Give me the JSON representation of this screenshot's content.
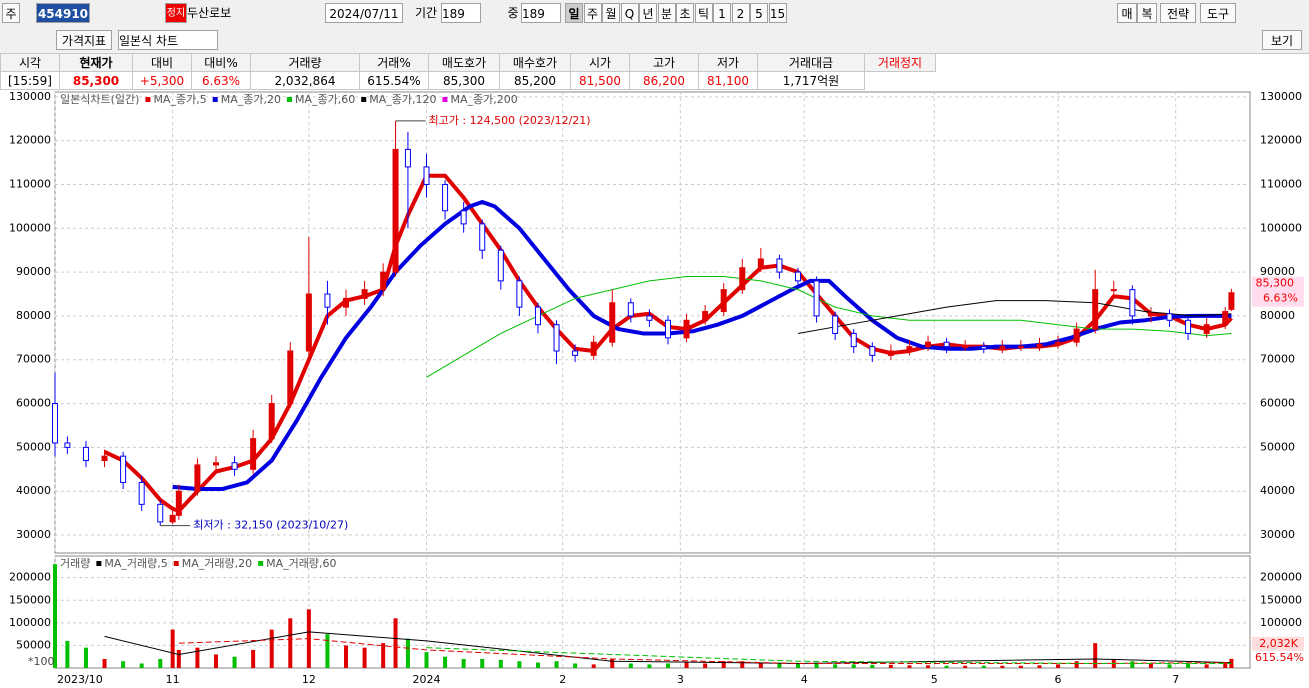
{
  "toolbar": {
    "code_label": "주",
    "code": "454910",
    "badge": "정지",
    "name": "두산로보",
    "date": "2024/07/11",
    "period_label": "기간",
    "period": "189",
    "mid_label": "중",
    "mid": "189",
    "intervals": [
      "일",
      "주",
      "월",
      "Q",
      "년",
      "분",
      "초",
      "틱",
      "1",
      "2",
      "5",
      "15"
    ],
    "right_buttons": [
      "매",
      "복",
      "전략",
      "도구"
    ],
    "indicator": "가격지표",
    "chart_kind": "일본식 차트",
    "view": "보기"
  },
  "quote": {
    "headers": [
      "시각",
      "현재가",
      "대비",
      "대비%",
      "거래량",
      "거래%",
      "매도호가",
      "매수호가",
      "시가",
      "고가",
      "저가",
      "거래대금",
      "거래정지"
    ],
    "values": [
      "[15:59]",
      "85,300",
      "+5,300",
      "6.63%",
      "2,032,864",
      "615.54%",
      "85,300",
      "85,200",
      "81,500",
      "86,200",
      "81,100",
      "1,717억원"
    ]
  },
  "chart_data": [
    {
      "type": "candlestick",
      "legend_title": "일본식차트(일간)",
      "up_color": "#e00000",
      "down_color": "#0000ff",
      "x": [
        0,
        2,
        5,
        8,
        11,
        14,
        17,
        19,
        20,
        23,
        26,
        29,
        32,
        35,
        38,
        41,
        44,
        47,
        50,
        53,
        55,
        57,
        60,
        63,
        66,
        69,
        72,
        75,
        78,
        81,
        84,
        87,
        90,
        93,
        96,
        99,
        102,
        105,
        108,
        111,
        114,
        117,
        120,
        123,
        126,
        129,
        132,
        135,
        138,
        141,
        144,
        147,
        150,
        153,
        156,
        159,
        162,
        165,
        168,
        171,
        174,
        177,
        180,
        183,
        186,
        189,
        190
      ],
      "open": [
        60000,
        51000,
        50000,
        47000,
        48000,
        42000,
        37000,
        33000,
        34500,
        40000,
        46000,
        46500,
        45000,
        52000,
        60000,
        72000,
        85000,
        82000,
        84000,
        86000,
        90000,
        118000,
        114000,
        110000,
        104000,
        101000,
        95000,
        88000,
        82000,
        78000,
        72000,
        71000,
        74000,
        83000,
        80000,
        79000,
        75000,
        79000,
        81000,
        86000,
        91000,
        93000,
        90000,
        88000,
        80000,
        76000,
        73000,
        71000,
        72000,
        73000,
        74000,
        73000,
        73000,
        72500,
        73000,
        73000,
        73500,
        74000,
        77000,
        86000,
        86000,
        80000,
        80500,
        79000,
        76000,
        78000,
        81500
      ],
      "high": [
        67000,
        52500,
        51500,
        49500,
        49000,
        43500,
        38000,
        36000,
        41500,
        47500,
        48000,
        48000,
        54000,
        62000,
        74000,
        98000,
        88000,
        86000,
        88000,
        92000,
        124500,
        122000,
        117000,
        111000,
        106000,
        102000,
        96000,
        89000,
        83000,
        79000,
        73500,
        75500,
        86000,
        84000,
        81500,
        80000,
        80500,
        82500,
        87500,
        93000,
        95500,
        94000,
        91000,
        89000,
        81000,
        77000,
        74000,
        73500,
        74500,
        75500,
        75000,
        74500,
        74000,
        74500,
        74500,
        75000,
        75500,
        78500,
        90500,
        88000,
        87000,
        82000,
        81500,
        80000,
        79500,
        82000,
        86200
      ],
      "low": [
        48000,
        48500,
        45500,
        45500,
        40500,
        35500,
        32150,
        32500,
        33500,
        39000,
        44500,
        43500,
        44000,
        51000,
        59000,
        71000,
        78000,
        80000,
        82500,
        84500,
        89000,
        100000,
        107000,
        102000,
        99000,
        93000,
        86000,
        80000,
        76000,
        69000,
        69500,
        70000,
        73000,
        78500,
        77500,
        73500,
        74000,
        78000,
        80000,
        85000,
        90000,
        88500,
        86500,
        78500,
        74500,
        71500,
        69500,
        70000,
        71000,
        72000,
        71500,
        72000,
        71500,
        71500,
        72000,
        72000,
        72500,
        73000,
        76000,
        84000,
        78000,
        78500,
        77500,
        74500,
        75000,
        77000,
        81100
      ],
      "close": [
        51000,
        50000,
        47000,
        48000,
        42000,
        37000,
        33000,
        34500,
        40000,
        46000,
        46500,
        45000,
        52000,
        60000,
        72000,
        85000,
        82000,
        84000,
        86000,
        90000,
        118000,
        114000,
        110000,
        104000,
        101000,
        95000,
        88000,
        82000,
        78000,
        72000,
        71000,
        74000,
        83000,
        80000,
        79000,
        75000,
        79000,
        81000,
        86000,
        91000,
        93000,
        90000,
        88000,
        80000,
        76000,
        73000,
        71000,
        72000,
        73000,
        74000,
        73000,
        73000,
        72500,
        73000,
        73000,
        73500,
        74000,
        77000,
        86000,
        86000,
        80000,
        80500,
        79000,
        76000,
        78000,
        81000,
        85300
      ],
      "series": [
        {
          "name": "MA_종가,5",
          "color": "#e00000",
          "width": 4,
          "x": [
            8,
            11,
            14,
            17,
            19,
            20,
            23,
            26,
            29,
            32,
            35,
            38,
            41,
            44,
            47,
            50,
            53,
            55,
            57,
            60,
            63,
            66,
            69,
            72,
            75,
            78,
            81,
            84,
            87,
            90,
            93,
            96,
            99,
            102,
            105,
            108,
            111,
            114,
            117,
            120,
            123,
            126,
            129,
            132,
            135,
            138,
            141,
            144,
            147,
            150,
            153,
            156,
            159,
            162,
            165,
            168,
            171,
            174,
            177,
            180,
            183,
            186,
            189,
            190
          ],
          "values": [
            49000,
            47000,
            43000,
            38000,
            36000,
            35500,
            40000,
            44500,
            45500,
            47000,
            52000,
            60000,
            70000,
            80000,
            83500,
            84500,
            86000,
            96000,
            103000,
            112000,
            112000,
            107000,
            101000,
            95000,
            88000,
            82000,
            77000,
            72500,
            72000,
            77000,
            80000,
            80500,
            77500,
            77000,
            79000,
            83000,
            87000,
            91000,
            91500,
            90000,
            85000,
            80000,
            75000,
            72500,
            71500,
            72000,
            73000,
            73500,
            73000,
            73000,
            72500,
            73000,
            73000,
            73500,
            75000,
            79000,
            84500,
            84000,
            80500,
            80000,
            78000,
            77000,
            78000,
            79500
          ]
        },
        {
          "name": "MA_종가,20",
          "color": "#0000e0",
          "width": 4,
          "x": [
            19,
            23,
            27,
            31,
            35,
            39,
            43,
            47,
            51,
            55,
            59,
            63,
            67,
            69,
            71,
            75,
            79,
            83,
            87,
            91,
            95,
            99,
            103,
            107,
            111,
            115,
            119,
            122,
            125,
            128,
            132,
            136,
            140,
            144,
            148,
            152,
            156,
            160,
            164,
            168,
            172,
            176,
            180,
            184,
            188,
            190
          ],
          "values": [
            41000,
            40500,
            40500,
            42000,
            47000,
            56000,
            66000,
            75000,
            82000,
            90000,
            96000,
            101000,
            105000,
            106000,
            105000,
            100000,
            93000,
            86000,
            80000,
            77000,
            76000,
            76000,
            76500,
            78000,
            80000,
            83000,
            86000,
            88000,
            88000,
            84000,
            79000,
            75000,
            73000,
            72500,
            72500,
            73000,
            73000,
            73500,
            75000,
            77000,
            78500,
            79000,
            79800,
            80000,
            80000,
            80000
          ]
        },
        {
          "name": "MA_종가,60",
          "color": "#00c000",
          "width": 1,
          "x": [
            60,
            66,
            72,
            78,
            84,
            90,
            96,
            102,
            108,
            114,
            120,
            126,
            132,
            138,
            144,
            150,
            156,
            162,
            168,
            174,
            180,
            186,
            190
          ],
          "values": [
            66000,
            71000,
            76000,
            80000,
            84000,
            86000,
            88000,
            89000,
            89000,
            88000,
            86000,
            82000,
            80000,
            79000,
            79000,
            79000,
            79000,
            78000,
            77000,
            77000,
            76500,
            75500,
            76000
          ]
        },
        {
          "name": "MA_종가,120",
          "color": "#000000",
          "width": 1,
          "x": [
            120,
            128,
            136,
            144,
            152,
            160,
            168,
            176,
            184,
            190
          ],
          "values": [
            76000,
            78000,
            80000,
            82000,
            83500,
            83500,
            83000,
            81000,
            80000,
            80500
          ]
        },
        {
          "name": "MA_종가,200",
          "color": "#e000e0",
          "width": 1,
          "x": [],
          "values": []
        }
      ],
      "annotations": [
        {
          "text": "최고가 : 124,500 (2023/12/21)",
          "x": 55,
          "value": 124500,
          "color": "#e00000"
        },
        {
          "text": "최저가 : 32,150 (2023/10/27)",
          "x": 17,
          "value": 32150,
          "color": "#0000c0"
        }
      ],
      "xlim": [
        0,
        193
      ],
      "ylim": [
        25900,
        131100
      ],
      "yticks": [
        30000,
        40000,
        50000,
        60000,
        70000,
        80000,
        90000,
        100000,
        110000,
        120000,
        130000
      ],
      "grid": true
    },
    {
      "type": "bar",
      "unit_label": "*100",
      "current_label": "2,032K",
      "up_color": "#e00000",
      "down_color": "#00c000",
      "series": [
        {
          "name": "거래량",
          "color": "#e00000",
          "x": [
            0,
            2,
            5,
            8,
            11,
            14,
            17,
            19,
            20,
            23,
            26,
            29,
            32,
            35,
            38,
            41,
            44,
            47,
            50,
            53,
            55,
            57,
            60,
            63,
            66,
            69,
            72,
            75,
            78,
            81,
            84,
            87,
            90,
            93,
            96,
            99,
            102,
            105,
            108,
            111,
            114,
            117,
            120,
            123,
            126,
            129,
            132,
            135,
            138,
            141,
            144,
            147,
            150,
            153,
            156,
            159,
            162,
            165,
            168,
            171,
            174,
            177,
            180,
            183,
            186,
            189,
            190
          ],
          "values": [
            230000,
            60000,
            45000,
            20000,
            15000,
            10000,
            20000,
            85000,
            40000,
            45000,
            30000,
            25000,
            40000,
            85000,
            110000,
            130000,
            75000,
            50000,
            45000,
            55000,
            110000,
            65000,
            35000,
            25000,
            20000,
            20000,
            18000,
            15000,
            12000,
            15000,
            10000,
            8000,
            20000,
            10000,
            8000,
            10000,
            12000,
            10000,
            15000,
            15000,
            12000,
            10000,
            10000,
            12000,
            8000,
            8000,
            7000,
            7000,
            6000,
            6000,
            5000,
            5000,
            5000,
            5000,
            5000,
            6000,
            8000,
            15000,
            55000,
            20000,
            15000,
            10000,
            8000,
            10000,
            8000,
            12000,
            20328
          ]
        },
        {
          "name": "MA_거래량,5",
          "color": "#000000",
          "x": [
            8,
            20,
            41,
            60,
            90,
            120,
            168,
            190
          ],
          "values": [
            70000,
            30000,
            80000,
            60000,
            15000,
            10000,
            20000,
            12000
          ]
        },
        {
          "name": "MA_거래량,20",
          "color": "#e00000",
          "x": [
            20,
            41,
            60,
            90,
            120,
            168,
            190
          ],
          "values": [
            55000,
            65000,
            40000,
            20000,
            10000,
            10000,
            12000
          ]
        },
        {
          "name": "MA_거래량,60",
          "color": "#00c000",
          "x": [
            60,
            90,
            120,
            168,
            190
          ],
          "values": [
            45000,
            30000,
            15000,
            10000,
            10000
          ]
        }
      ],
      "xlim": [
        0,
        193
      ],
      "ylim": [
        0,
        248000
      ],
      "yticks": [
        50000,
        100000,
        150000,
        200000
      ],
      "xticks": [
        {
          "value": 0,
          "label": "2023/10"
        },
        {
          "value": 19,
          "label": "11"
        },
        {
          "value": 41,
          "label": "12"
        },
        {
          "value": 60,
          "label": "2024"
        },
        {
          "value": 82,
          "label": "2"
        },
        {
          "value": 101,
          "label": "3"
        },
        {
          "value": 121,
          "label": "4"
        },
        {
          "value": 142,
          "label": "5"
        },
        {
          "value": 162,
          "label": "6"
        },
        {
          "value": 181,
          "label": "7"
        }
      ],
      "grid": true
    }
  ]
}
